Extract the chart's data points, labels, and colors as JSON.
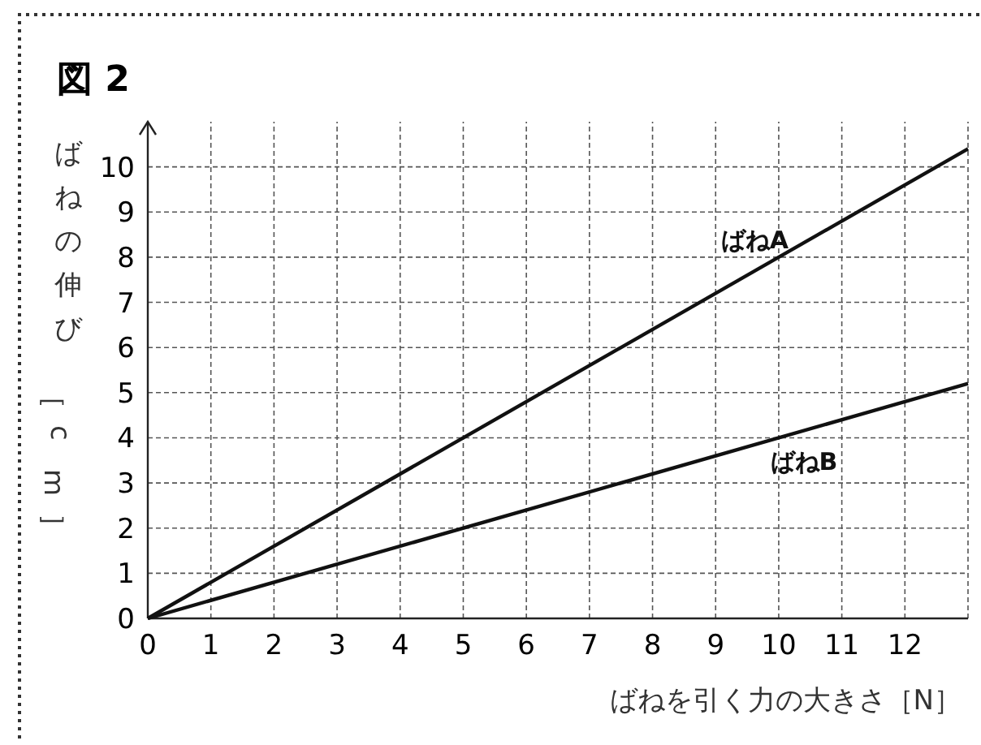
{
  "chart_data": {
    "type": "line",
    "title": "図 2",
    "xlabel": "ばねを引く力の大きさ［N］",
    "ylabel": "ばねの伸び［cm］",
    "x": [
      0,
      13
    ],
    "xlim": [
      0,
      13
    ],
    "ylim": [
      0,
      11
    ],
    "xticks": [
      0,
      1,
      2,
      3,
      4,
      5,
      6,
      7,
      8,
      9,
      10,
      11,
      12
    ],
    "yticks": [
      0,
      1,
      2,
      3,
      4,
      5,
      6,
      7,
      8,
      9,
      10
    ],
    "grid": true,
    "line_style": "solid",
    "marker": "none",
    "series": [
      {
        "name": "ばねA",
        "color": "#111111",
        "values": [
          0,
          10.4
        ]
      },
      {
        "name": "ばねB",
        "color": "#111111",
        "values": [
          0,
          5.2
        ]
      }
    ]
  }
}
